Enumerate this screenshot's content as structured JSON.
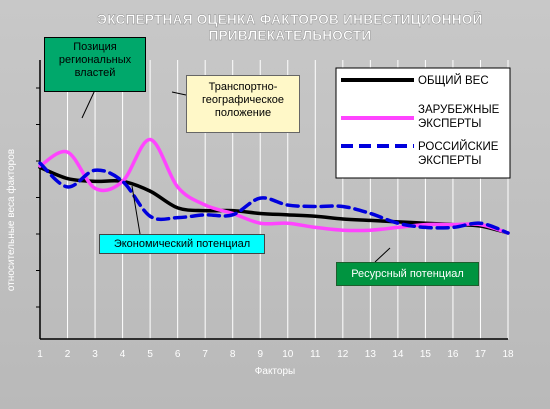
{
  "chart_data": {
    "type": "line",
    "title_lines": [
      "ЭКСПЕРТНАЯ ОЦЕНКА ФАКТОРОВ ИНВЕСТИЦИОННОЙ",
      "ПРИВЛЕКАТЕЛЬНОСТИ"
    ],
    "xlabel": "Факторы",
    "ylabel": "относительные веса факторов",
    "x": [
      1,
      2,
      3,
      4,
      5,
      6,
      7,
      8,
      9,
      10,
      11,
      12,
      13,
      14,
      15,
      16,
      17,
      18
    ],
    "xlim": [
      1,
      18
    ],
    "ylim": [
      0,
      1
    ],
    "grid": "vertical",
    "legend_position": "top-right",
    "series": [
      {
        "name": "ОБЩИЙ ВЕС",
        "color": "#000000",
        "style": "solid",
        "values": [
          0.87,
          0.79,
          0.77,
          0.77,
          0.7,
          0.58,
          0.56,
          0.56,
          0.54,
          0.53,
          0.52,
          0.5,
          0.49,
          0.48,
          0.47,
          0.46,
          0.45,
          0.4
        ]
      },
      {
        "name": "ЗАРУБЕЖНЫЕ ЭКСПЕРТЫ",
        "color": "#ff44ff",
        "style": "solid",
        "values": [
          0.88,
          0.98,
          0.72,
          0.77,
          1.07,
          0.73,
          0.6,
          0.54,
          0.47,
          0.47,
          0.44,
          0.42,
          0.42,
          0.44,
          0.46,
          0.46,
          0.46,
          0.4
        ]
      },
      {
        "name": "РОССИЙСКИЕ ЭКСПЕРТЫ",
        "color": "#0000dd",
        "style": "dashed",
        "values": [
          0.9,
          0.73,
          0.85,
          0.77,
          0.52,
          0.51,
          0.53,
          0.53,
          0.65,
          0.6,
          0.59,
          0.59,
          0.54,
          0.47,
          0.44,
          0.44,
          0.47,
          0.4
        ]
      }
    ],
    "annotations": [
      {
        "text": "Позиция региональных властей",
        "color": "#00a86b"
      },
      {
        "text": "Транспортно-географическое положение",
        "color": "#fff8c8"
      },
      {
        "text": "Экономический потенциал",
        "color": "#00ffff"
      },
      {
        "text": "Ресурсный потенциал",
        "color": "#009440"
      }
    ]
  }
}
